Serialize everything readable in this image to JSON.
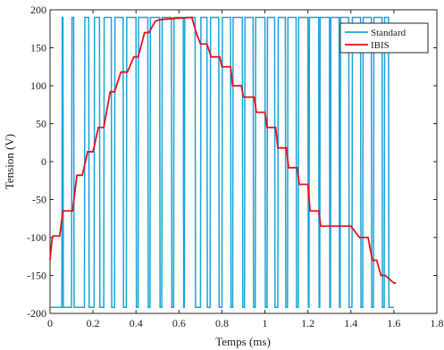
{
  "chart_data": {
    "type": "line",
    "title": "",
    "xlabel": "Temps (ms)",
    "ylabel": "Tension (V)",
    "xlim": [
      0,
      1.8
    ],
    "ylim": [
      -200,
      200
    ],
    "xticks": [
      0,
      0.2,
      0.4,
      0.6,
      0.8,
      1,
      1.2,
      1.4,
      1.6,
      1.8
    ],
    "xtick_labels": [
      "0",
      "0.2",
      "0.4",
      "0.6",
      "0.8",
      "1",
      "1.2",
      "1.4",
      "1.6",
      "1.8"
    ],
    "yticks": [
      -200,
      -150,
      -100,
      -50,
      0,
      50,
      100,
      150,
      200
    ],
    "ytick_labels": [
      "-200",
      "-150",
      "-100",
      "-50",
      "0",
      "50",
      "100",
      "150",
      "200"
    ],
    "grid": false,
    "legend_position": "top-right",
    "series": [
      {
        "name": "Standard",
        "color": "#1ba3d6",
        "kind": "pwm",
        "low": -192,
        "high": 190,
        "x_start": 0,
        "x_end": 1.6,
        "start_level": "low",
        "toggle_times": [
          0.055,
          0.06,
          0.1,
          0.11,
          0.16,
          0.18,
          0.205,
          0.23,
          0.25,
          0.285,
          0.3,
          0.34,
          0.355,
          0.4,
          0.41,
          0.455,
          0.465,
          0.51,
          0.52,
          0.565,
          0.575,
          0.62,
          0.625,
          0.675,
          0.7,
          0.73,
          0.745,
          0.785,
          0.8,
          0.84,
          0.85,
          0.895,
          0.905,
          0.945,
          0.955,
          1,
          1.01,
          1.045,
          1.06,
          1.095,
          1.105,
          1.145,
          1.155,
          1.2,
          1.205,
          1.25,
          1.255,
          1.3,
          1.305,
          1.345,
          1.35,
          1.39,
          1.405,
          1.445,
          1.455,
          1.495,
          1.505,
          1.545,
          1.555,
          1.575
        ]
      },
      {
        "name": "IBIS",
        "color": "#e8101e",
        "kind": "steps",
        "x": [
          0,
          0.01,
          0.015,
          0.045,
          0.06,
          0.105,
          0.125,
          0.15,
          0.175,
          0.2,
          0.225,
          0.25,
          0.28,
          0.3,
          0.33,
          0.36,
          0.39,
          0.41,
          0.44,
          0.46,
          0.49,
          0.51,
          0.55,
          0.6,
          0.66,
          0.68,
          0.7,
          0.73,
          0.75,
          0.79,
          0.8,
          0.84,
          0.85,
          0.89,
          0.9,
          0.95,
          0.96,
          1.0,
          1.01,
          1.05,
          1.06,
          1.1,
          1.11,
          1.15,
          1.16,
          1.2,
          1.21,
          1.25,
          1.26,
          1.4,
          1.44,
          1.48,
          1.5,
          1.52,
          1.54,
          1.56,
          1.6,
          1.61
        ],
        "y": [
          -130,
          -100,
          -98,
          -98,
          -65,
          -65,
          -18,
          -18,
          13,
          13,
          45,
          45,
          92,
          92,
          118,
          118,
          138,
          138,
          170,
          170,
          185,
          187,
          188,
          189,
          190,
          170,
          155,
          155,
          138,
          138,
          125,
          125,
          100,
          100,
          85,
          85,
          65,
          65,
          45,
          45,
          18,
          18,
          -8,
          -8,
          -30,
          -30,
          -65,
          -65,
          -85,
          -85,
          -100,
          -100,
          -130,
          -130,
          -150,
          -150,
          -160,
          -160
        ]
      }
    ]
  }
}
